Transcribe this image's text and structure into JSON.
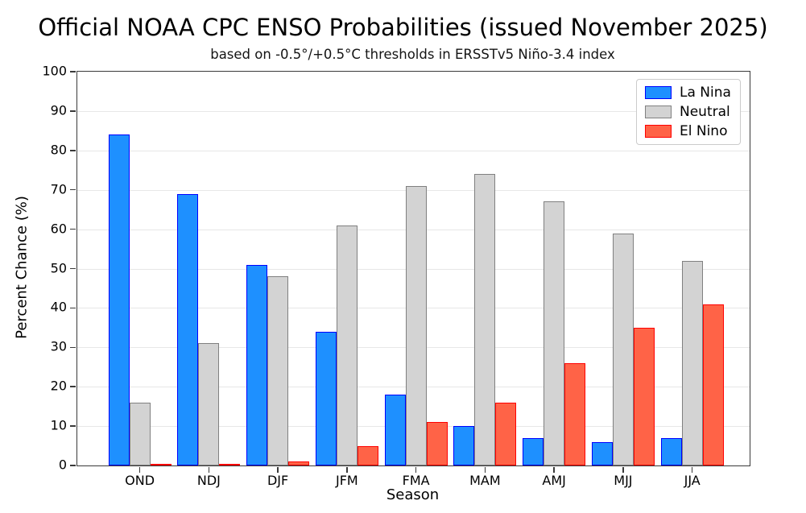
{
  "chart_data": {
    "type": "bar",
    "title": "Official NOAA CPC ENSO Probabilities (issued November 2025)",
    "subtitle": "based on -0.5°/+0.5°C thresholds in ERSSTv5 Niño-3.4 index",
    "xlabel": "Season",
    "ylabel": "Percent Chance (%)",
    "categories": [
      "OND",
      "NDJ",
      "DJF",
      "JFM",
      "FMA",
      "MAM",
      "AMJ",
      "MJJ",
      "JJA"
    ],
    "series": [
      {
        "name": "La Nina",
        "fill": "#1e90ff",
        "edge": "#0000ff",
        "values": [
          84,
          69,
          51,
          34,
          18,
          10,
          7,
          6,
          7
        ]
      },
      {
        "name": "Neutral",
        "fill": "#d3d3d3",
        "edge": "#808080",
        "values": [
          16,
          31,
          48,
          61,
          71,
          74,
          67,
          59,
          52
        ]
      },
      {
        "name": "El Nino",
        "fill": "#ff6347",
        "edge": "#ff0000",
        "values": [
          0,
          0,
          1,
          5,
          11,
          16,
          26,
          35,
          41
        ]
      }
    ],
    "ylim": [
      0,
      100
    ],
    "yticks": [
      0,
      10,
      20,
      30,
      40,
      50,
      60,
      70,
      80,
      90,
      100
    ],
    "grid": "horizontal",
    "gridline_color": "#e7e7e7",
    "legend": {
      "position": "upper right",
      "entries": [
        "La Nina",
        "Neutral",
        "El Nino"
      ]
    }
  }
}
